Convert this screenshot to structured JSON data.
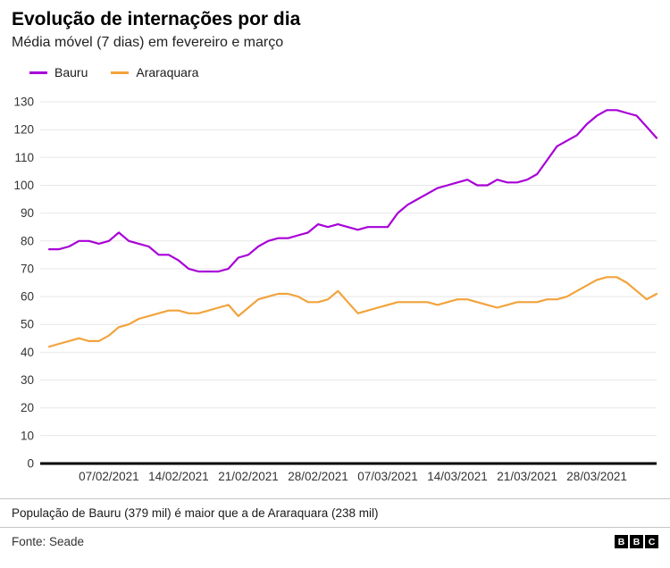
{
  "header": {
    "title": "Evolução de internações por dia",
    "subtitle": "Média móvel (7 dias) em fevereiro e março"
  },
  "chart_data": {
    "type": "line",
    "title": "Evolução de internações por dia",
    "subtitle": "Média móvel (7 dias) em fevereiro e março",
    "x_start_date": "01/02/2021",
    "x_frequency": "daily",
    "x_tick_labels": [
      "07/02/2021",
      "14/02/2021",
      "21/02/2021",
      "28/02/2021",
      "07/03/2021",
      "14/03/2021",
      "21/03/2021",
      "28/03/2021"
    ],
    "x_tick_indices": [
      6,
      13,
      20,
      27,
      34,
      41,
      48,
      55
    ],
    "y_ticks": [
      0,
      10,
      20,
      30,
      40,
      50,
      60,
      70,
      80,
      90,
      100,
      110,
      120,
      130
    ],
    "ylim": [
      0,
      130
    ],
    "grid": "horizontal",
    "legend_position": "top-left",
    "series": [
      {
        "name": "Bauru",
        "color": "#A800D8",
        "values": [
          77,
          77,
          78,
          80,
          80,
          79,
          80,
          83,
          80,
          79,
          78,
          75,
          75,
          73,
          70,
          69,
          69,
          69,
          70,
          74,
          75,
          78,
          80,
          81,
          81,
          82,
          83,
          86,
          85,
          86,
          85,
          84,
          85,
          85,
          85,
          90,
          93,
          95,
          97,
          99,
          100,
          101,
          102,
          100,
          100,
          102,
          101,
          101,
          102,
          104,
          109,
          114,
          116,
          118,
          122,
          125,
          127,
          127,
          126,
          125,
          121,
          117
        ]
      },
      {
        "name": "Araraquara",
        "color": "#F2A33C",
        "values": [
          42,
          43,
          44,
          45,
          44,
          44,
          46,
          49,
          50,
          52,
          53,
          54,
          55,
          55,
          54,
          54,
          55,
          56,
          57,
          53,
          56,
          59,
          60,
          61,
          61,
          60,
          58,
          58,
          59,
          62,
          58,
          54,
          55,
          56,
          57,
          58,
          58,
          58,
          58,
          57,
          58,
          59,
          59,
          58,
          57,
          56,
          57,
          58,
          58,
          58,
          59,
          59,
          60,
          62,
          64,
          66,
          67,
          67,
          65,
          62,
          59,
          61
        ]
      }
    ]
  },
  "footnote": {
    "text": "População de Bauru (379 mil) é maior que a de Araraquara (238 mil)"
  },
  "footer": {
    "source": "Fonte: Seade",
    "bbc_letters": [
      "B",
      "B",
      "C"
    ]
  }
}
